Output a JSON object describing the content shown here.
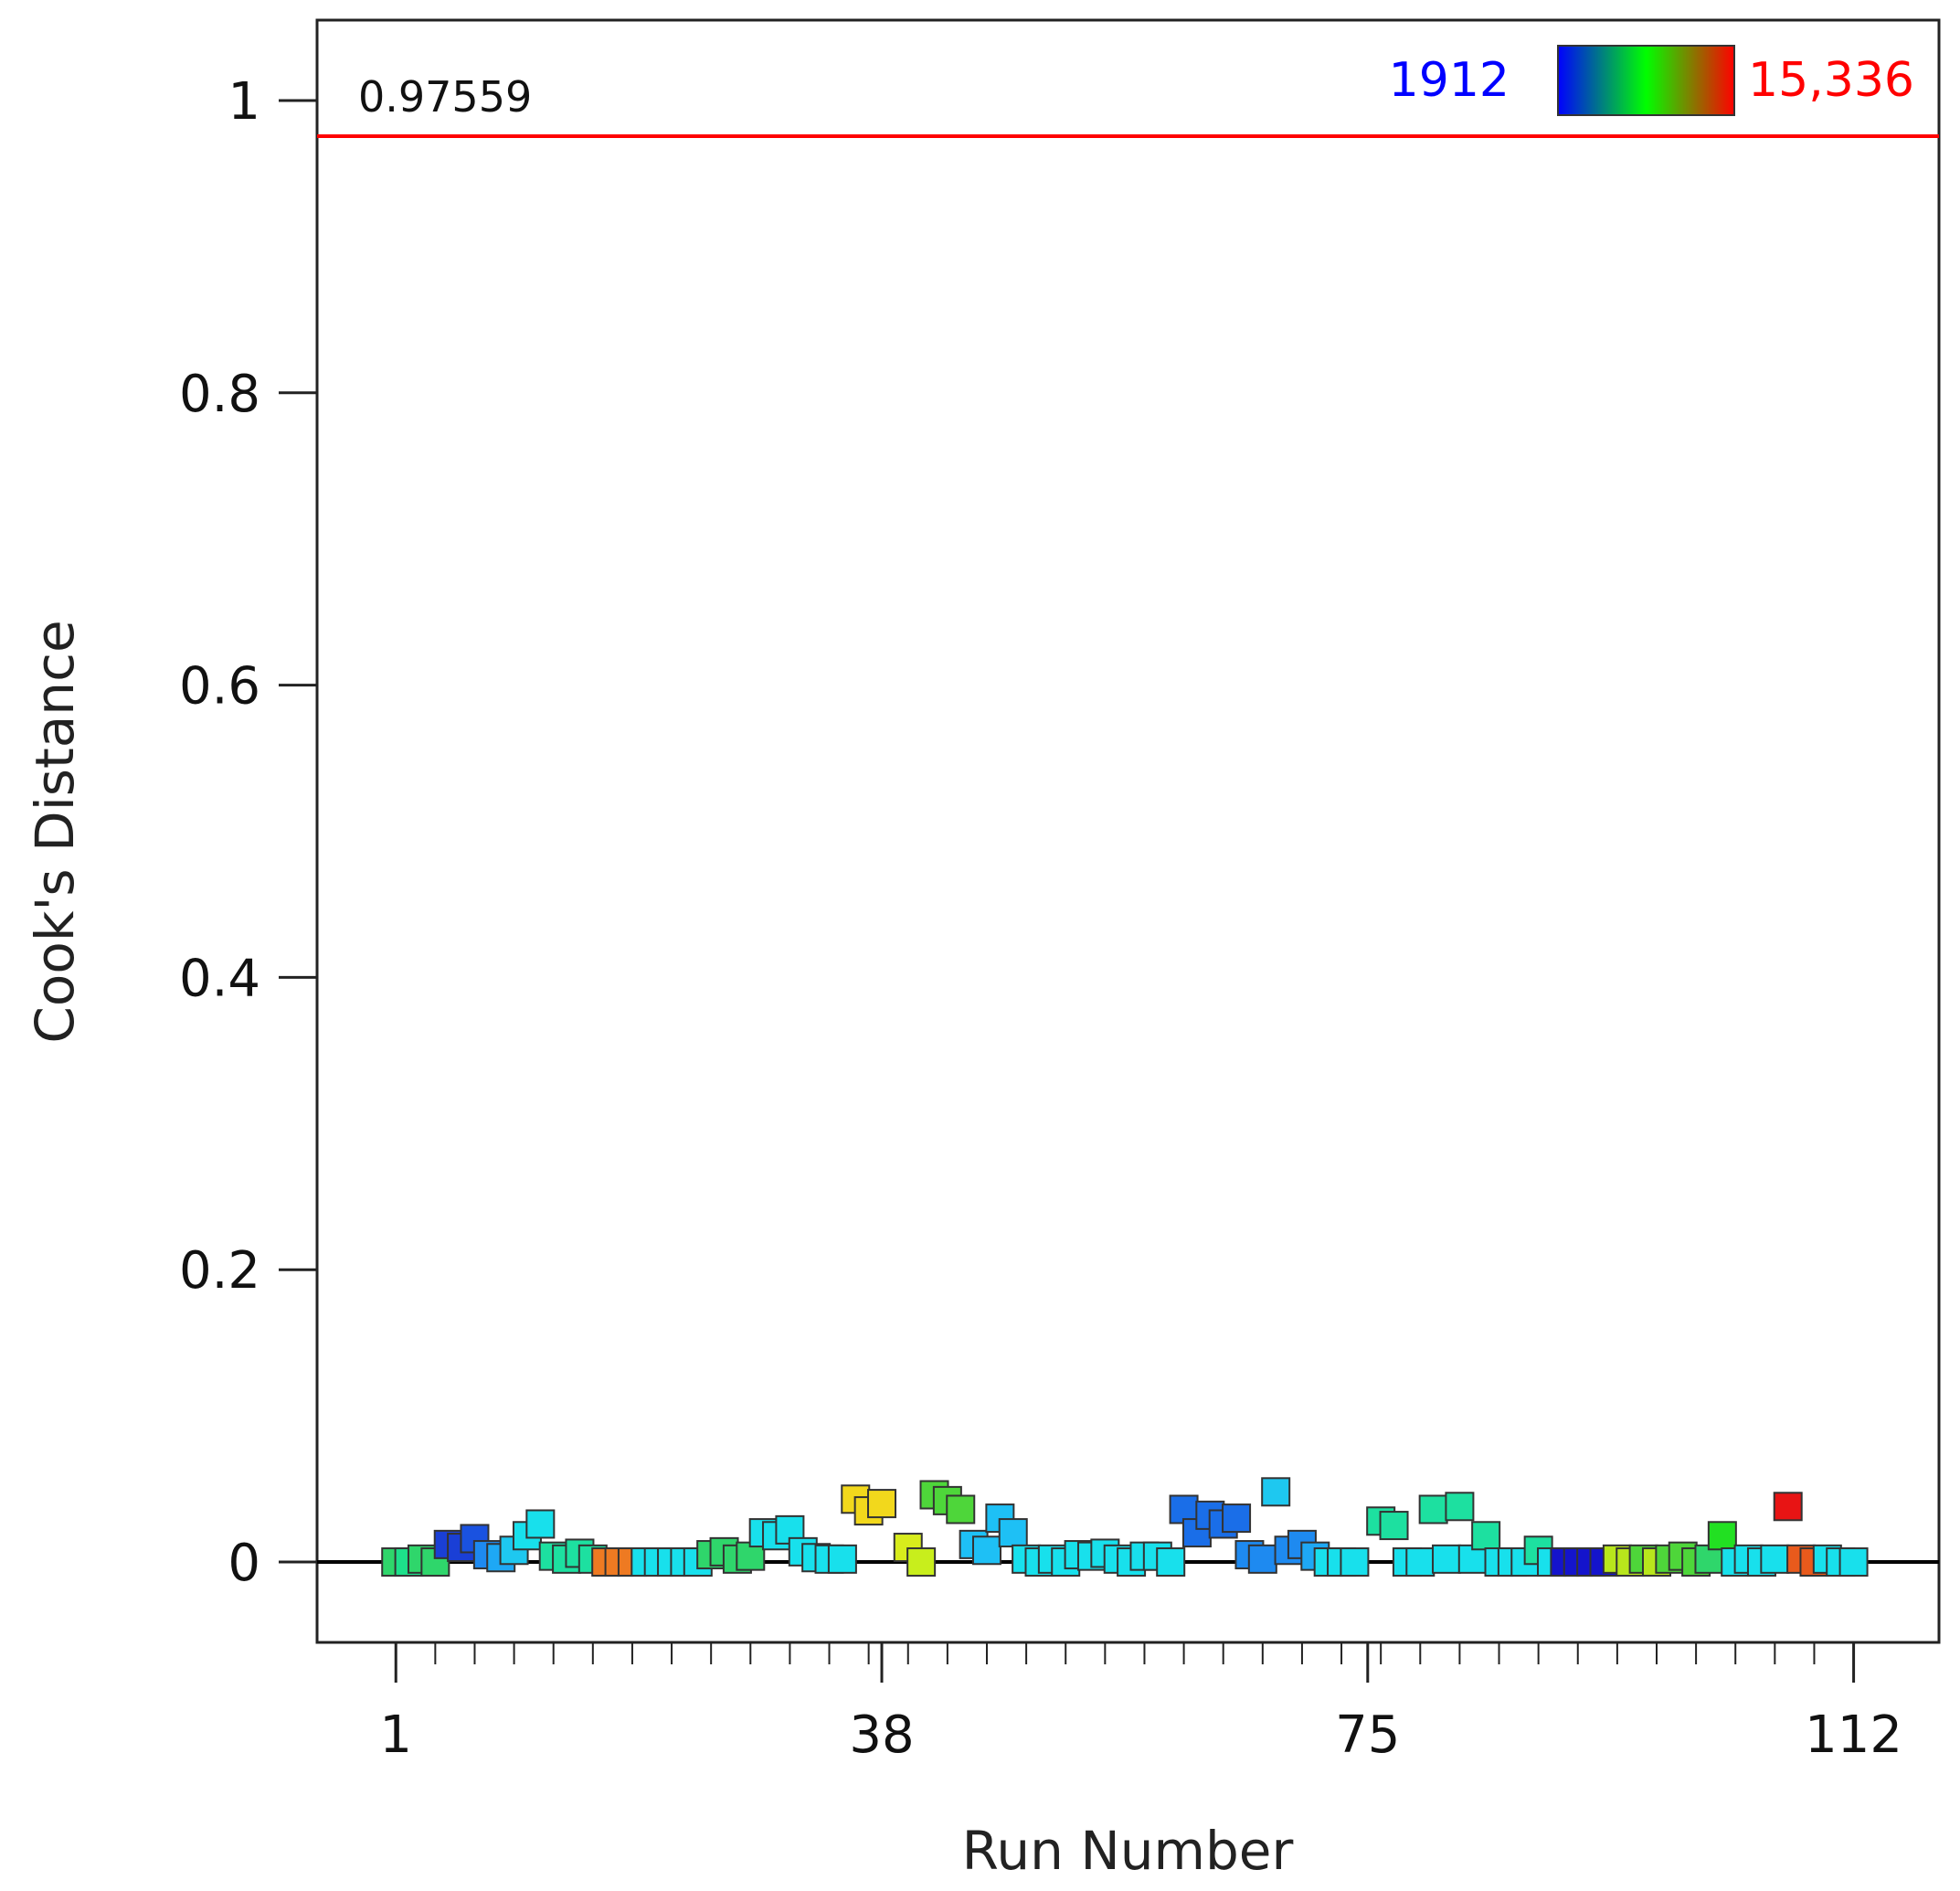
{
  "chart_data": {
    "type": "scatter",
    "title": "",
    "xlabel": "Run Number",
    "ylabel": "Cook's Distance",
    "xlim": [
      -5,
      118.5
    ],
    "ylim": [
      -0.055,
      1.055
    ],
    "x_tick_labels": [
      "1",
      "38",
      "75",
      "112"
    ],
    "x_tick_values": [
      1,
      38,
      75,
      112
    ],
    "y_tick_labels": [
      "0",
      "0.2",
      "0.4",
      "0.6",
      "0.8",
      "1"
    ],
    "y_tick_values": [
      0,
      0.2,
      0.4,
      0.6,
      0.8,
      1
    ],
    "reference_line": {
      "value": 0.97559,
      "label": "0.97559",
      "color": "#ff0000"
    },
    "zero_line_color": "#000000",
    "color_scale": {
      "min_label": "1912",
      "max_label": "15,336",
      "min_color": "#0000ff",
      "max_color": "#ff0000",
      "stops": [
        "#0000ff",
        "#00ff00",
        "#ff0000"
      ]
    },
    "points": [
      {
        "x": 1,
        "y": 0.0,
        "color": "#2fd66b"
      },
      {
        "x": 2,
        "y": 0.0,
        "color": "#1de08a"
      },
      {
        "x": 3,
        "y": 0.002,
        "color": "#2fd66b"
      },
      {
        "x": 4,
        "y": 0.0,
        "color": "#2fd66b"
      },
      {
        "x": 5,
        "y": 0.012,
        "color": "#1a3fd6"
      },
      {
        "x": 6,
        "y": 0.01,
        "color": "#1a3fd6"
      },
      {
        "x": 7,
        "y": 0.016,
        "color": "#1a52e0"
      },
      {
        "x": 8,
        "y": 0.005,
        "color": "#1e8af0"
      },
      {
        "x": 9,
        "y": 0.003,
        "color": "#1ea8f5"
      },
      {
        "x": 10,
        "y": 0.008,
        "color": "#1ec8f0"
      },
      {
        "x": 11,
        "y": 0.018,
        "color": "#18e0ec"
      },
      {
        "x": 12,
        "y": 0.026,
        "color": "#18e0ec"
      },
      {
        "x": 13,
        "y": 0.004,
        "color": "#1de0a0"
      },
      {
        "x": 14,
        "y": 0.002,
        "color": "#1de0a0"
      },
      {
        "x": 15,
        "y": 0.006,
        "color": "#1de0a0"
      },
      {
        "x": 16,
        "y": 0.002,
        "color": "#1de0a0"
      },
      {
        "x": 17,
        "y": 0.0,
        "color": "#ee7a22"
      },
      {
        "x": 18,
        "y": 0.0,
        "color": "#ee7a22"
      },
      {
        "x": 19,
        "y": 0.0,
        "color": "#ee7a22"
      },
      {
        "x": 20,
        "y": 0.0,
        "color": "#18e0ec"
      },
      {
        "x": 21,
        "y": 0.0,
        "color": "#18e0ec"
      },
      {
        "x": 22,
        "y": 0.0,
        "color": "#18e0ec"
      },
      {
        "x": 23,
        "y": 0.0,
        "color": "#18e0ec"
      },
      {
        "x": 24,
        "y": 0.0,
        "color": "#18e0ec"
      },
      {
        "x": 25,
        "y": 0.005,
        "color": "#2fd66b"
      },
      {
        "x": 26,
        "y": 0.007,
        "color": "#2fd66b"
      },
      {
        "x": 27,
        "y": 0.002,
        "color": "#2fd66b"
      },
      {
        "x": 28,
        "y": 0.004,
        "color": "#2fd66b"
      },
      {
        "x": 29,
        "y": 0.02,
        "color": "#18e0ec"
      },
      {
        "x": 30,
        "y": 0.018,
        "color": "#18e0ec"
      },
      {
        "x": 31,
        "y": 0.022,
        "color": "#18e0ec"
      },
      {
        "x": 32,
        "y": 0.007,
        "color": "#18e0ec"
      },
      {
        "x": 33,
        "y": 0.003,
        "color": "#18e0ec"
      },
      {
        "x": 34,
        "y": 0.002,
        "color": "#18e0ec"
      },
      {
        "x": 35,
        "y": 0.002,
        "color": "#18e0ec"
      },
      {
        "x": 36,
        "y": 0.043,
        "color": "#f2d81c"
      },
      {
        "x": 37,
        "y": 0.035,
        "color": "#f2d81c"
      },
      {
        "x": 38,
        "y": 0.04,
        "color": "#f2d81c"
      },
      {
        "x": 40,
        "y": 0.01,
        "color": "#d8ec1c"
      },
      {
        "x": 41,
        "y": 0.0,
        "color": "#c8ee1c"
      },
      {
        "x": 42,
        "y": 0.046,
        "color": "#4ed63a"
      },
      {
        "x": 43,
        "y": 0.042,
        "color": "#4ed63a"
      },
      {
        "x": 44,
        "y": 0.036,
        "color": "#4ed63a"
      },
      {
        "x": 45,
        "y": 0.012,
        "color": "#1ec0f5"
      },
      {
        "x": 46,
        "y": 0.008,
        "color": "#1ec0f5"
      },
      {
        "x": 47,
        "y": 0.03,
        "color": "#1ec0f5"
      },
      {
        "x": 48,
        "y": 0.02,
        "color": "#1ec0f5"
      },
      {
        "x": 49,
        "y": 0.002,
        "color": "#18e0ec"
      },
      {
        "x": 50,
        "y": 0.0,
        "color": "#18e0ec"
      },
      {
        "x": 51,
        "y": 0.002,
        "color": "#18e0ec"
      },
      {
        "x": 52,
        "y": 0.0,
        "color": "#18e0ec"
      },
      {
        "x": 53,
        "y": 0.005,
        "color": "#18e0ec"
      },
      {
        "x": 54,
        "y": 0.004,
        "color": "#18e0ec"
      },
      {
        "x": 55,
        "y": 0.006,
        "color": "#18e0ec"
      },
      {
        "x": 56,
        "y": 0.002,
        "color": "#18e0ec"
      },
      {
        "x": 57,
        "y": 0.0,
        "color": "#18e0ec"
      },
      {
        "x": 58,
        "y": 0.004,
        "color": "#18e0ec"
      },
      {
        "x": 59,
        "y": 0.004,
        "color": "#18e0ec"
      },
      {
        "x": 60,
        "y": 0.0,
        "color": "#18e0ec"
      },
      {
        "x": 61,
        "y": 0.036,
        "color": "#1a6ee8"
      },
      {
        "x": 62,
        "y": 0.02,
        "color": "#1a6ee8"
      },
      {
        "x": 63,
        "y": 0.032,
        "color": "#1a6ee8"
      },
      {
        "x": 64,
        "y": 0.026,
        "color": "#1a6ee8"
      },
      {
        "x": 65,
        "y": 0.03,
        "color": "#1a6ee8"
      },
      {
        "x": 66,
        "y": 0.005,
        "color": "#1e8af0"
      },
      {
        "x": 67,
        "y": 0.002,
        "color": "#1e8af0"
      },
      {
        "x": 68,
        "y": 0.048,
        "color": "#1ec8f0"
      },
      {
        "x": 69,
        "y": 0.008,
        "color": "#1e8af0"
      },
      {
        "x": 70,
        "y": 0.012,
        "color": "#1e8af0"
      },
      {
        "x": 71,
        "y": 0.004,
        "color": "#1ea8f5"
      },
      {
        "x": 72,
        "y": 0.0,
        "color": "#18e0ec"
      },
      {
        "x": 73,
        "y": 0.0,
        "color": "#18e0ec"
      },
      {
        "x": 74,
        "y": 0.0,
        "color": "#18e0ec"
      },
      {
        "x": 76,
        "y": 0.028,
        "color": "#1de0a0"
      },
      {
        "x": 77,
        "y": 0.025,
        "color": "#1de0a0"
      },
      {
        "x": 78,
        "y": 0.0,
        "color": "#18e0ec"
      },
      {
        "x": 79,
        "y": 0.0,
        "color": "#18e0ec"
      },
      {
        "x": 80,
        "y": 0.036,
        "color": "#1de0a0"
      },
      {
        "x": 81,
        "y": 0.002,
        "color": "#18e0ec"
      },
      {
        "x": 82,
        "y": 0.038,
        "color": "#1de0a0"
      },
      {
        "x": 83,
        "y": 0.002,
        "color": "#18e0ec"
      },
      {
        "x": 84,
        "y": 0.018,
        "color": "#1de0a0"
      },
      {
        "x": 85,
        "y": 0.0,
        "color": "#18e0ec"
      },
      {
        "x": 86,
        "y": 0.0,
        "color": "#18e0ec"
      },
      {
        "x": 87,
        "y": 0.0,
        "color": "#18e0ec"
      },
      {
        "x": 88,
        "y": 0.008,
        "color": "#1de0a0"
      },
      {
        "x": 89,
        "y": 0.0,
        "color": "#18e0ec"
      },
      {
        "x": 90,
        "y": 0.0,
        "color": "#1414cc"
      },
      {
        "x": 91,
        "y": 0.0,
        "color": "#1414cc"
      },
      {
        "x": 92,
        "y": 0.0,
        "color": "#1414cc"
      },
      {
        "x": 93,
        "y": 0.0,
        "color": "#1414cc"
      },
      {
        "x": 94,
        "y": 0.002,
        "color": "#b8e61c"
      },
      {
        "x": 95,
        "y": 0.0,
        "color": "#b8e61c"
      },
      {
        "x": 96,
        "y": 0.002,
        "color": "#4ed63a"
      },
      {
        "x": 97,
        "y": 0.0,
        "color": "#b8e61c"
      },
      {
        "x": 98,
        "y": 0.002,
        "color": "#4ed63a"
      },
      {
        "x": 99,
        "y": 0.004,
        "color": "#4ed63a"
      },
      {
        "x": 100,
        "y": 0.0,
        "color": "#4ed63a"
      },
      {
        "x": 101,
        "y": 0.002,
        "color": "#2fd66b"
      },
      {
        "x": 102,
        "y": 0.018,
        "color": "#22e022"
      },
      {
        "x": 103,
        "y": 0.0,
        "color": "#18e0ec"
      },
      {
        "x": 104,
        "y": 0.002,
        "color": "#18e0ec"
      },
      {
        "x": 105,
        "y": 0.0,
        "color": "#18e0ec"
      },
      {
        "x": 106,
        "y": 0.002,
        "color": "#18e0ec"
      },
      {
        "x": 107,
        "y": 0.038,
        "color": "#e81414"
      },
      {
        "x": 108,
        "y": 0.002,
        "color": "#e85a1c"
      },
      {
        "x": 109,
        "y": 0.0,
        "color": "#e85a1c"
      },
      {
        "x": 110,
        "y": 0.002,
        "color": "#18e0ec"
      },
      {
        "x": 111,
        "y": 0.0,
        "color": "#18e0ec"
      },
      {
        "x": 112,
        "y": 0.0,
        "color": "#18e0ec"
      }
    ]
  }
}
